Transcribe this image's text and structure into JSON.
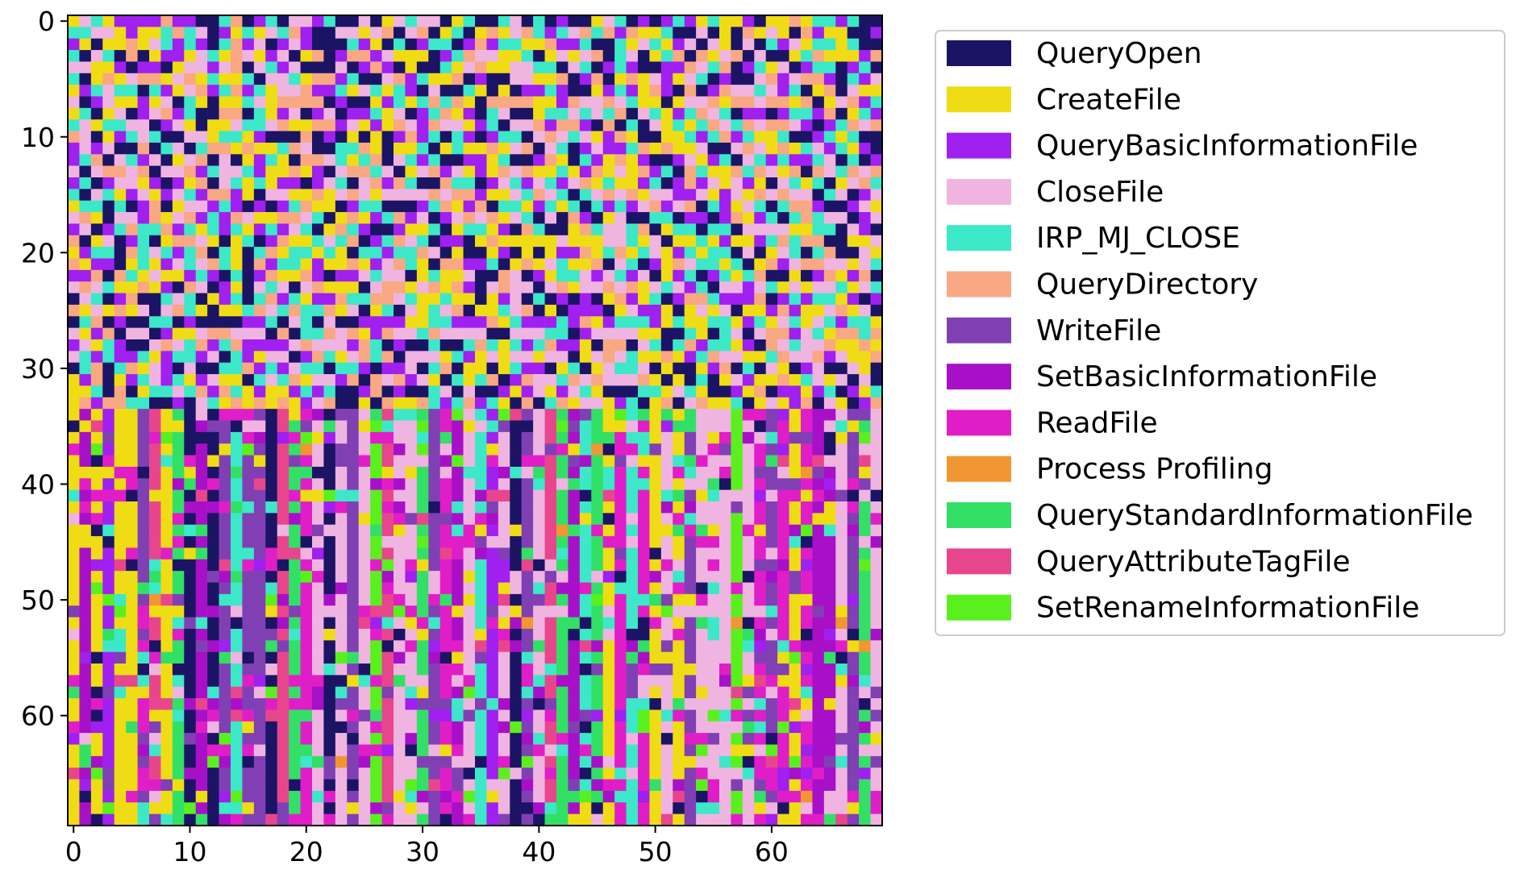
{
  "chart_data": {
    "type": "heatmap",
    "title": "",
    "xlabel": "",
    "ylabel": "",
    "grid_size": [
      70,
      70
    ],
    "x_range": [
      -0.5,
      69.5
    ],
    "y_range": [
      -0.5,
      69.5
    ],
    "y_axis_inverted": true,
    "x_ticks": [
      "0",
      "10",
      "20",
      "30",
      "40",
      "50",
      "60"
    ],
    "y_ticks": [
      "0",
      "10",
      "20",
      "30",
      "40",
      "50",
      "60"
    ],
    "grid": false,
    "legend_position": "right",
    "categories": [
      {
        "name": "QueryOpen",
        "color": "#1b1464"
      },
      {
        "name": "CreateFile",
        "color": "#f0dc14"
      },
      {
        "name": "QueryBasicInformationFile",
        "color": "#a020f0"
      },
      {
        "name": "CloseFile",
        "color": "#f0b4e1"
      },
      {
        "name": "IRP_MJ_CLOSE",
        "color": "#3ce8c8"
      },
      {
        "name": "QueryDirectory",
        "color": "#f8a882"
      },
      {
        "name": "WriteFile",
        "color": "#8040b4"
      },
      {
        "name": "SetBasicInformationFile",
        "color": "#a810c8"
      },
      {
        "name": "ReadFile",
        "color": "#e01ec8"
      },
      {
        "name": "Process Profiling",
        "color": "#f09632"
      },
      {
        "name": "QueryStandardInformationFile",
        "color": "#32e066"
      },
      {
        "name": "QueryAttributeTagFile",
        "color": "#e8468c"
      },
      {
        "name": "SetRenameInformationFile",
        "color": "#5af01e"
      }
    ],
    "region_description": "Rows 0-34 dominated by QueryOpen, CreateFile, QueryBasicInformationFile, CloseFile, IRP_MJ_CLOSE and QueryDirectory in a fine interleaved pattern; rows 34-70 dominated by ReadFile, WriteFile, SetBasicInformationFile, QueryStandardInformationFile, QueryAttributeTagFile and SetRenameInformationFile in vertical column bands."
  }
}
